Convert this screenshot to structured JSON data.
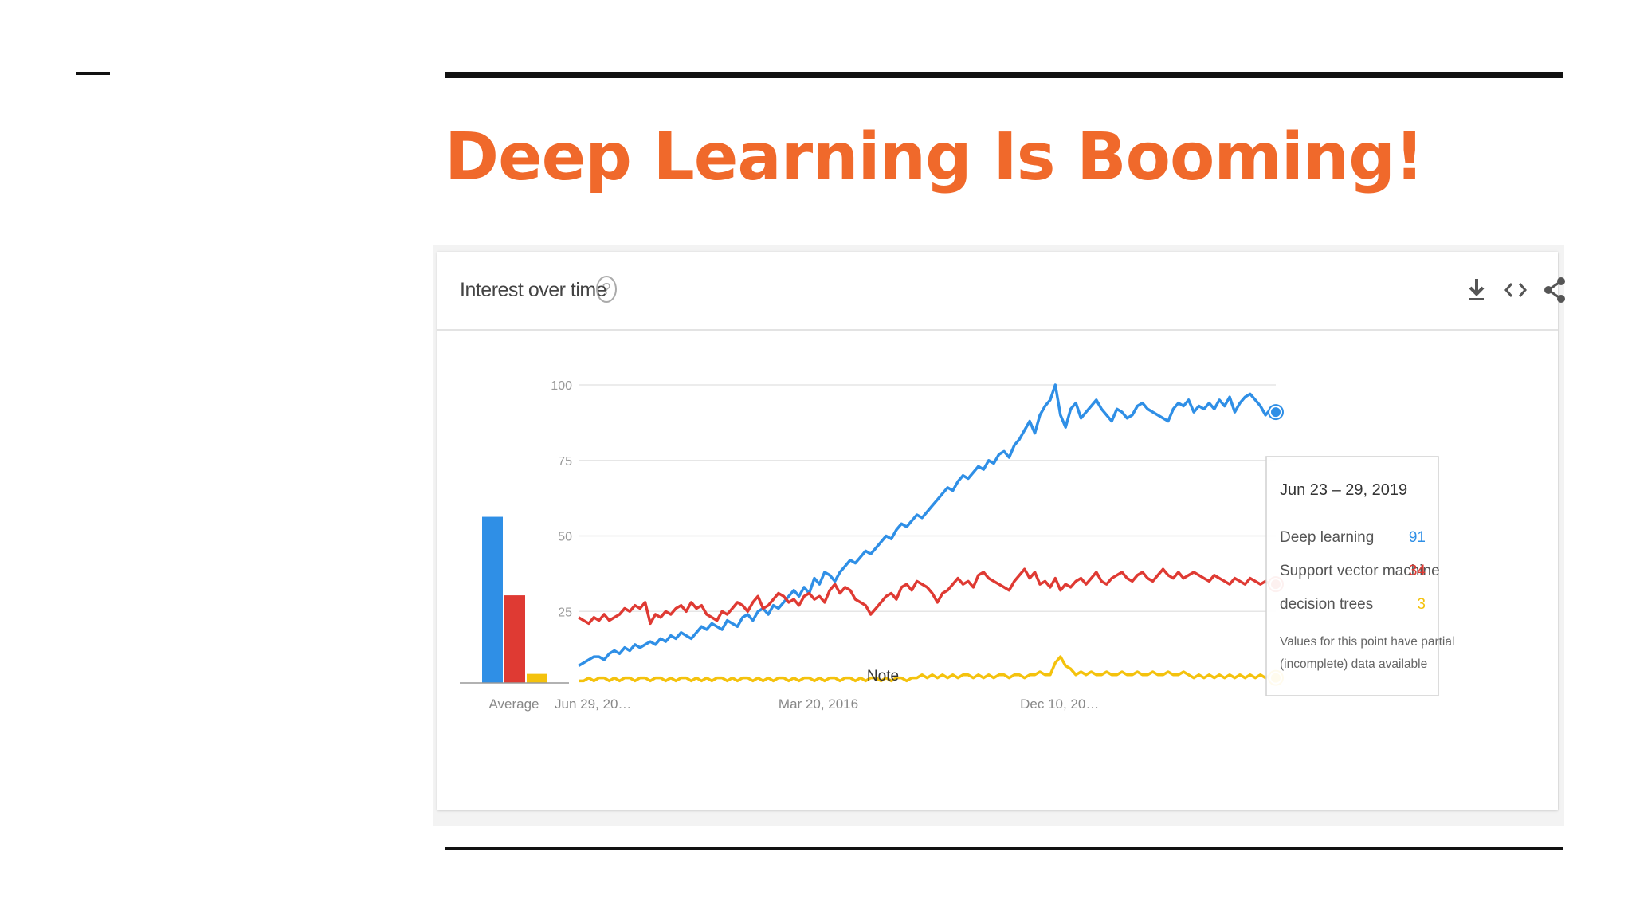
{
  "slide": {
    "title": "Deep Learning Is Booming!"
  },
  "card": {
    "title": "Interest over time",
    "help_glyph": "?"
  },
  "icons": [
    "download-icon",
    "embed-code-icon",
    "share-icon"
  ],
  "colors": {
    "deep_learning": "#2f8fe6",
    "svm": "#df3a33",
    "decision_trees": "#f4c20d",
    "title": "#f0692b"
  },
  "chart_data": {
    "type": "line",
    "xlabel": "",
    "ylabel": "",
    "ylim": [
      0,
      100
    ],
    "y_ticks": [
      25,
      50,
      75,
      100
    ],
    "x_tick_labels": [
      "Jun 29, 20…",
      "Mar 20, 2016",
      "Dec 10, 20…"
    ],
    "note_label": "Note",
    "average_label": "Average",
    "grid": true,
    "legend": "none",
    "series": [
      {
        "name": "Deep learning",
        "average": 55,
        "values": [
          7,
          8,
          9,
          10,
          10,
          9,
          11,
          12,
          11,
          13,
          12,
          14,
          13,
          14,
          15,
          14,
          16,
          15,
          17,
          16,
          18,
          17,
          16,
          18,
          20,
          19,
          21,
          20,
          19,
          22,
          21,
          20,
          23,
          24,
          22,
          25,
          26,
          24,
          27,
          26,
          28,
          30,
          32,
          30,
          33,
          31,
          36,
          34,
          38,
          37,
          35,
          38,
          40,
          42,
          41,
          43,
          45,
          44,
          46,
          48,
          50,
          49,
          52,
          54,
          53,
          55,
          57,
          56,
          58,
          60,
          62,
          64,
          66,
          65,
          68,
          70,
          69,
          71,
          73,
          72,
          75,
          74,
          77,
          78,
          76,
          80,
          82,
          85,
          88,
          84,
          90,
          93,
          95,
          100,
          90,
          86,
          92,
          94,
          89,
          91,
          93,
          95,
          92,
          90,
          88,
          92,
          91,
          89,
          90,
          93,
          94,
          92,
          91,
          90,
          89,
          88,
          92,
          94,
          93,
          95,
          91,
          93,
          92,
          94,
          92,
          95,
          93,
          96,
          91,
          94,
          96,
          97,
          95,
          93,
          90,
          92,
          91
        ]
      },
      {
        "name": "Support vector machine",
        "average": 29,
        "values": [
          23,
          22,
          21,
          23,
          22,
          24,
          22,
          23,
          24,
          26,
          25,
          27,
          26,
          28,
          21,
          24,
          23,
          25,
          24,
          26,
          27,
          25,
          28,
          26,
          27,
          24,
          23,
          22,
          25,
          24,
          26,
          28,
          27,
          25,
          28,
          30,
          26,
          27,
          29,
          31,
          30,
          28,
          29,
          27,
          30,
          31,
          29,
          30,
          28,
          32,
          34,
          31,
          33,
          32,
          29,
          28,
          27,
          24,
          26,
          28,
          30,
          31,
          29,
          33,
          34,
          32,
          35,
          34,
          33,
          31,
          28,
          31,
          32,
          34,
          36,
          34,
          35,
          33,
          37,
          38,
          36,
          35,
          34,
          33,
          32,
          35,
          37,
          39,
          36,
          38,
          34,
          35,
          33,
          36,
          32,
          34,
          33,
          35,
          36,
          34,
          36,
          38,
          35,
          34,
          36,
          37,
          38,
          36,
          35,
          37,
          38,
          36,
          35,
          37,
          39,
          37,
          36,
          38,
          36,
          37,
          38,
          37,
          36,
          35,
          37,
          36,
          35,
          34,
          36,
          35,
          34,
          36,
          35,
          34,
          35,
          34,
          34
        ]
      },
      {
        "name": "decision trees",
        "average": 3,
        "values": [
          2,
          2,
          3,
          2,
          3,
          3,
          2,
          3,
          2,
          3,
          3,
          2,
          3,
          3,
          2,
          3,
          3,
          2,
          3,
          2,
          3,
          3,
          2,
          3,
          2,
          3,
          2,
          3,
          3,
          2,
          3,
          2,
          3,
          3,
          2,
          3,
          2,
          3,
          2,
          3,
          3,
          2,
          3,
          2,
          3,
          3,
          2,
          3,
          2,
          3,
          3,
          2,
          3,
          3,
          2,
          3,
          2,
          3,
          3,
          2,
          3,
          2,
          3,
          3,
          2,
          3,
          3,
          4,
          3,
          4,
          3,
          4,
          3,
          4,
          3,
          4,
          4,
          3,
          4,
          3,
          4,
          3,
          4,
          4,
          3,
          4,
          4,
          3,
          4,
          4,
          5,
          4,
          4,
          8,
          10,
          7,
          6,
          4,
          5,
          4,
          5,
          4,
          4,
          5,
          4,
          4,
          5,
          4,
          4,
          5,
          4,
          4,
          5,
          4,
          4,
          5,
          4,
          4,
          5,
          4,
          3,
          4,
          3,
          4,
          3,
          4,
          3,
          4,
          3,
          4,
          3,
          4,
          3,
          4,
          3,
          4,
          3
        ]
      }
    ],
    "tooltip": {
      "date": "Jun 23 – 29, 2019",
      "rows": [
        {
          "label": "Deep learning",
          "value": "91"
        },
        {
          "label": "Support vector machine",
          "value": "34"
        },
        {
          "label": "decision trees",
          "value": "3"
        }
      ],
      "note_line1": "Values for this point have partial",
      "note_line2": "(incomplete) data available"
    }
  }
}
